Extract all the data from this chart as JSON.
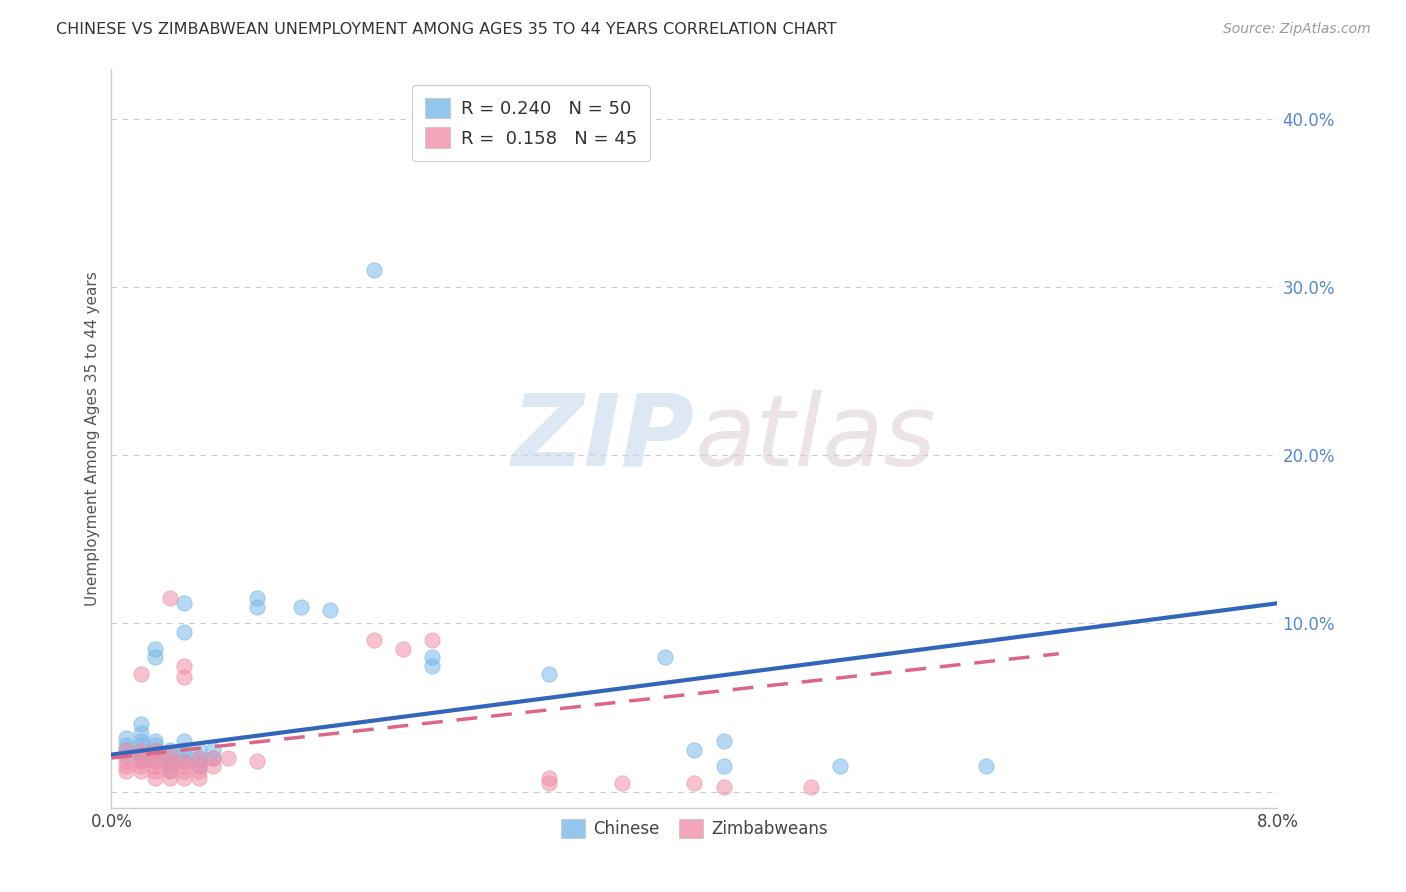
{
  "title": "CHINESE VS ZIMBABWEAN UNEMPLOYMENT AMONG AGES 35 TO 44 YEARS CORRELATION CHART",
  "source": "Source: ZipAtlas.com",
  "ylabel": "Unemployment Among Ages 35 to 44 years",
  "xlim": [
    0.0,
    0.08
  ],
  "ylim": [
    -0.01,
    0.43
  ],
  "yticks": [
    0.0,
    0.1,
    0.2,
    0.3,
    0.4
  ],
  "ytick_labels": [
    "",
    "10.0%",
    "20.0%",
    "30.0%",
    "40.0%"
  ],
  "xticks": [
    0.0,
    0.02,
    0.04,
    0.06,
    0.08
  ],
  "xtick_labels": [
    "0.0%",
    "",
    "",
    "",
    "8.0%"
  ],
  "legend_top_labels": [
    "R = 0.240   N = 50",
    "R =  0.158   N = 45"
  ],
  "legend_bottom": [
    "Chinese",
    "Zimbabweans"
  ],
  "chinese_color": "#7ab8e8",
  "zimbabwean_color": "#f090a8",
  "chinese_line_color": "#3366bb",
  "zimbabwean_line_color": "#dd6688",
  "watermark_zip": "ZIP",
  "watermark_atlas": "atlas",
  "bg_color": "#ffffff",
  "grid_color": "#cccccc",
  "chinese_scatter": [
    [
      0.001,
      0.032
    ],
    [
      0.001,
      0.028
    ],
    [
      0.001,
      0.025
    ],
    [
      0.001,
      0.022
    ],
    [
      0.002,
      0.04
    ],
    [
      0.002,
      0.035
    ],
    [
      0.002,
      0.03
    ],
    [
      0.002,
      0.028
    ],
    [
      0.002,
      0.025
    ],
    [
      0.002,
      0.022
    ],
    [
      0.002,
      0.02
    ],
    [
      0.002,
      0.018
    ],
    [
      0.003,
      0.085
    ],
    [
      0.003,
      0.08
    ],
    [
      0.003,
      0.03
    ],
    [
      0.003,
      0.028
    ],
    [
      0.003,
      0.025
    ],
    [
      0.003,
      0.022
    ],
    [
      0.003,
      0.018
    ],
    [
      0.004,
      0.025
    ],
    [
      0.004,
      0.022
    ],
    [
      0.004,
      0.018
    ],
    [
      0.004,
      0.015
    ],
    [
      0.004,
      0.012
    ],
    [
      0.005,
      0.112
    ],
    [
      0.005,
      0.095
    ],
    [
      0.005,
      0.03
    ],
    [
      0.005,
      0.025
    ],
    [
      0.005,
      0.022
    ],
    [
      0.005,
      0.018
    ],
    [
      0.006,
      0.025
    ],
    [
      0.006,
      0.02
    ],
    [
      0.006,
      0.018
    ],
    [
      0.006,
      0.015
    ],
    [
      0.007,
      0.025
    ],
    [
      0.007,
      0.02
    ],
    [
      0.01,
      0.115
    ],
    [
      0.01,
      0.11
    ],
    [
      0.013,
      0.11
    ],
    [
      0.015,
      0.108
    ],
    [
      0.018,
      0.31
    ],
    [
      0.022,
      0.08
    ],
    [
      0.022,
      0.075
    ],
    [
      0.03,
      0.07
    ],
    [
      0.038,
      0.08
    ],
    [
      0.04,
      0.025
    ],
    [
      0.042,
      0.03
    ],
    [
      0.042,
      0.015
    ],
    [
      0.05,
      0.015
    ],
    [
      0.06,
      0.015
    ]
  ],
  "zimbabwean_scatter": [
    [
      0.001,
      0.025
    ],
    [
      0.001,
      0.018
    ],
    [
      0.001,
      0.015
    ],
    [
      0.001,
      0.012
    ],
    [
      0.002,
      0.07
    ],
    [
      0.002,
      0.025
    ],
    [
      0.002,
      0.022
    ],
    [
      0.002,
      0.018
    ],
    [
      0.002,
      0.015
    ],
    [
      0.002,
      0.012
    ],
    [
      0.003,
      0.025
    ],
    [
      0.003,
      0.022
    ],
    [
      0.003,
      0.018
    ],
    [
      0.003,
      0.015
    ],
    [
      0.003,
      0.012
    ],
    [
      0.003,
      0.008
    ],
    [
      0.004,
      0.115
    ],
    [
      0.004,
      0.022
    ],
    [
      0.004,
      0.018
    ],
    [
      0.004,
      0.015
    ],
    [
      0.004,
      0.012
    ],
    [
      0.004,
      0.008
    ],
    [
      0.005,
      0.075
    ],
    [
      0.005,
      0.068
    ],
    [
      0.005,
      0.018
    ],
    [
      0.005,
      0.015
    ],
    [
      0.005,
      0.012
    ],
    [
      0.005,
      0.008
    ],
    [
      0.006,
      0.02
    ],
    [
      0.006,
      0.015
    ],
    [
      0.006,
      0.012
    ],
    [
      0.006,
      0.008
    ],
    [
      0.007,
      0.02
    ],
    [
      0.007,
      0.015
    ],
    [
      0.008,
      0.02
    ],
    [
      0.01,
      0.018
    ],
    [
      0.018,
      0.09
    ],
    [
      0.02,
      0.085
    ],
    [
      0.022,
      0.09
    ],
    [
      0.03,
      0.008
    ],
    [
      0.03,
      0.005
    ],
    [
      0.035,
      0.005
    ],
    [
      0.04,
      0.005
    ],
    [
      0.042,
      0.003
    ],
    [
      0.048,
      0.003
    ]
  ],
  "chinese_trendline": [
    [
      0.0,
      0.022
    ],
    [
      0.08,
      0.112
    ]
  ],
  "zimbabwean_trendline": [
    [
      0.0,
      0.02
    ],
    [
      0.065,
      0.082
    ]
  ]
}
